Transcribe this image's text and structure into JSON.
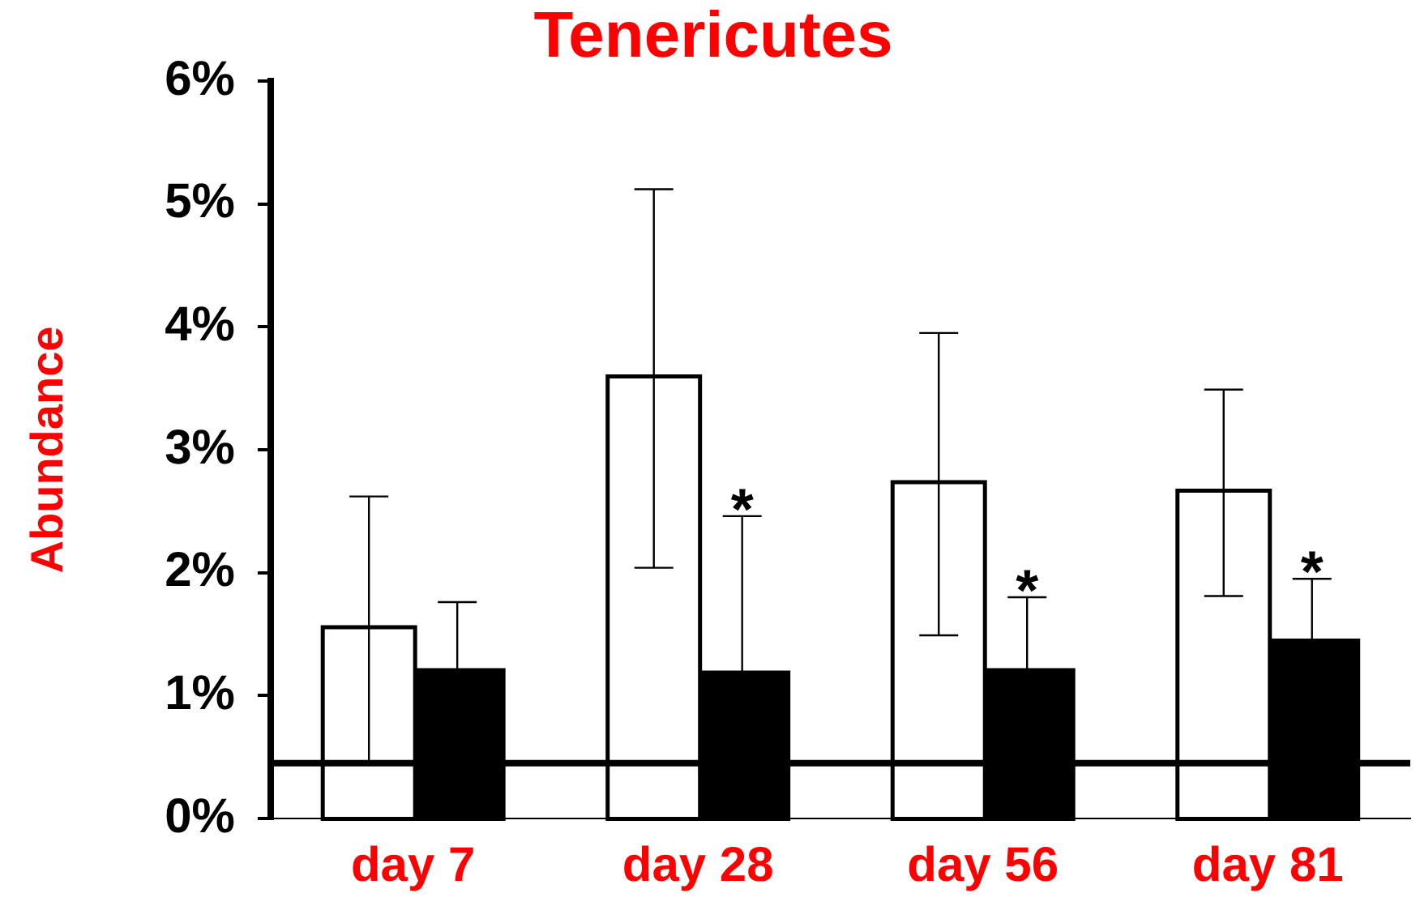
{
  "chart_data": {
    "type": "bar",
    "title": "Tenericutes",
    "ylabel": "Abundance",
    "categories": [
      "day 7",
      "day 28",
      "day 56",
      "day 81"
    ],
    "series": [
      {
        "color": "#ffffff",
        "values": [
          1.54,
          3.58,
          2.72,
          2.65
        ],
        "errors": [
          1.08,
          1.54,
          1.23,
          0.84
        ]
      },
      {
        "color": "#000000",
        "values": [
          1.19,
          1.17,
          1.19,
          1.43
        ],
        "errors": [
          [
            1.19,
            1.76
          ],
          [
            1.17,
            2.46
          ],
          [
            1.19,
            1.8
          ],
          [
            1.43,
            1.95
          ]
        ]
      }
    ],
    "ylim": [
      0,
      6
    ],
    "yticks": [
      {
        "value": 0,
        "label": "0%"
      },
      {
        "value": 1,
        "label": "1%"
      },
      {
        "value": 2,
        "label": "2%"
      },
      {
        "value": 3,
        "label": "3%"
      },
      {
        "value": 4,
        "label": "4%"
      },
      {
        "value": 5,
        "label": "5%"
      },
      {
        "value": 6,
        "label": "6%"
      }
    ],
    "ref_lines": [
      {
        "axis": "y",
        "value": 0.45,
        "color": "#000000"
      }
    ],
    "annotations": [
      {
        "text": "*",
        "x": "day 28",
        "y": 2.46
      },
      {
        "text": "*",
        "x": "day 56",
        "y": 1.8
      },
      {
        "text": "*",
        "x": "day 81",
        "y": 1.95
      }
    ],
    "grid": false,
    "legend": false
  }
}
